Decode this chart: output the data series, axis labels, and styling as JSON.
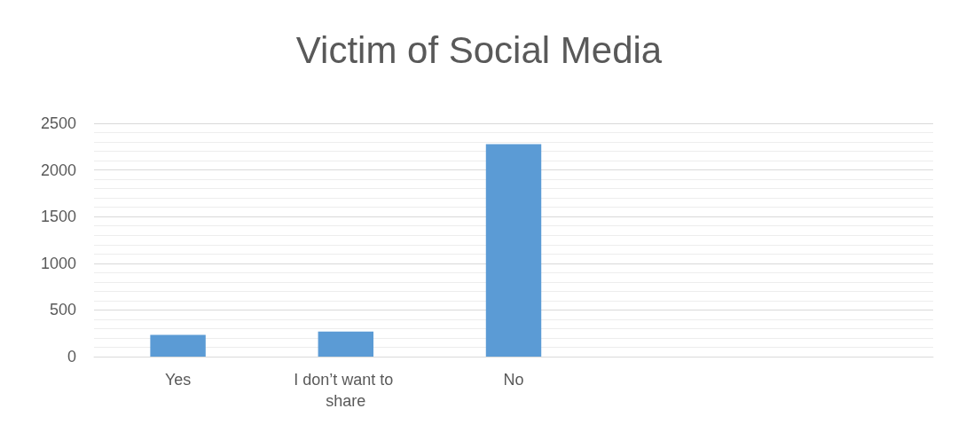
{
  "chart_data": {
    "type": "bar",
    "title": "Victim of Social Media",
    "categories": [
      "Yes",
      "I don’t want to share",
      "No",
      null,
      null
    ],
    "values": [
      233,
      269,
      2276,
      null,
      null
    ],
    "color": "#5b9bd5",
    "ylim": [
      0,
      2500
    ],
    "yticks": [
      0,
      500,
      1000,
      1500,
      2000,
      2500
    ],
    "grid": "y"
  }
}
